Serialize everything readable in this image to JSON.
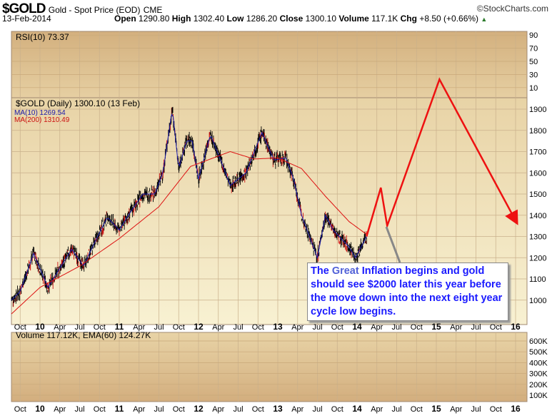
{
  "header": {
    "symbol": "$GOLD",
    "name": "Gold - Spot Price (EOD)",
    "exchange": "CME",
    "date": "13-Feb-2014",
    "copyright": "©StockCharts.com",
    "open_label": "Open",
    "open": "1290.80",
    "high_label": "High",
    "high": "1302.40",
    "low_label": "Low",
    "low": "1286.20",
    "close_label": "Close",
    "close": "1300.10",
    "volume_label": "Volume",
    "volume": "117.1K",
    "chg_label": "Chg",
    "chg": "+8.50 (+0.66%)",
    "chg_icon": "up-triangle-icon"
  },
  "rsi_panel": {
    "legend": "RSI(10) 73.37",
    "ticks": [
      "90",
      "70",
      "50",
      "30",
      "10"
    ]
  },
  "price_panel": {
    "legend": "$GOLD (Daily) 1300.10 (13 Feb)",
    "ma10": "MA(10) 1269.54",
    "ma200": "MA(200) 1310.49",
    "ticks": [
      "1900",
      "1800",
      "1700",
      "1600",
      "1500",
      "1400",
      "1300",
      "1200",
      "1100",
      "1000"
    ]
  },
  "volume_panel": {
    "legend": "Volume 117.12K, EMA(60) 124.27K",
    "ticks": [
      "600K",
      "500K",
      "400K",
      "300K",
      "200K",
      "100K"
    ]
  },
  "x_labels": [
    "Oct",
    "10",
    "Apr",
    "Jul",
    "Oct",
    "11",
    "Apr",
    "Jul",
    "Oct",
    "12",
    "Apr",
    "Jul",
    "Oct",
    "13",
    "Apr",
    "Jul",
    "Oct",
    "14",
    "Apr",
    "Jul",
    "Oct",
    "15",
    "Apr",
    "Jul",
    "Oct",
    "16"
  ],
  "annotation": {
    "pre": "The ",
    "great": "Great",
    "post": " Inflation begins and gold should see $2000 later this year before the move down into the next eight year cycle low begins."
  },
  "colors": {
    "price": "#000000",
    "ma10": "#1a1aaa",
    "ma200": "#dd1111",
    "projection": "#ee1111",
    "annotation_text": "#1a1aff"
  },
  "chart_data": {
    "type": "line",
    "title": "$GOLD Gold - Spot Price (EOD)",
    "price_ylim": [
      950,
      2040
    ],
    "x_range": [
      2009.64,
      2016.1
    ],
    "price_close": [
      [
        2009.64,
        1000
      ],
      [
        2009.75,
        1040
      ],
      [
        2009.92,
        1220
      ],
      [
        2010.1,
        1060
      ],
      [
        2010.2,
        1120
      ],
      [
        2010.4,
        1240
      ],
      [
        2010.55,
        1160
      ],
      [
        2010.7,
        1280
      ],
      [
        2010.85,
        1390
      ],
      [
        2011.0,
        1330
      ],
      [
        2011.15,
        1420
      ],
      [
        2011.3,
        1500
      ],
      [
        2011.45,
        1500
      ],
      [
        2011.55,
        1600
      ],
      [
        2011.67,
        1900
      ],
      [
        2011.75,
        1620
      ],
      [
        2011.85,
        1750
      ],
      [
        2011.92,
        1750
      ],
      [
        2012.0,
        1570
      ],
      [
        2012.15,
        1780
      ],
      [
        2012.3,
        1640
      ],
      [
        2012.4,
        1540
      ],
      [
        2012.6,
        1600
      ],
      [
        2012.8,
        1790
      ],
      [
        2012.95,
        1660
      ],
      [
        2013.1,
        1670
      ],
      [
        2013.2,
        1570
      ],
      [
        2013.3,
        1400
      ],
      [
        2013.5,
        1200
      ],
      [
        2013.6,
        1400
      ],
      [
        2013.7,
        1330
      ],
      [
        2013.8,
        1290
      ],
      [
        2013.9,
        1250
      ],
      [
        2013.98,
        1200
      ],
      [
        2014.12,
        1300
      ]
    ],
    "ma200": [
      [
        2009.64,
        935
      ],
      [
        2010.0,
        1060
      ],
      [
        2010.5,
        1160
      ],
      [
        2011.0,
        1290
      ],
      [
        2011.5,
        1440
      ],
      [
        2011.9,
        1630
      ],
      [
        2012.4,
        1700
      ],
      [
        2012.7,
        1665
      ],
      [
        2013.0,
        1670
      ],
      [
        2013.3,
        1620
      ],
      [
        2013.6,
        1490
      ],
      [
        2013.9,
        1370
      ],
      [
        2014.12,
        1310
      ]
    ],
    "projection": [
      [
        2014.12,
        1300
      ],
      [
        2014.3,
        1530
      ],
      [
        2014.38,
        1350
      ],
      [
        2015.04,
        2040
      ],
      [
        2016.0,
        1375
      ]
    ]
  }
}
